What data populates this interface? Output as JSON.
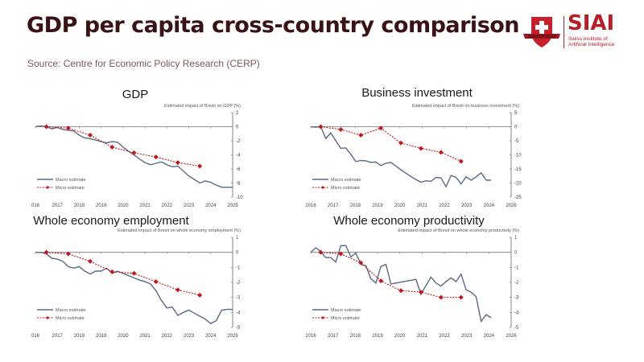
{
  "header": {
    "title": "GDP per capita cross-country comparison",
    "source": "Source: Centre for Economic Policy Research (CERP)"
  },
  "logo": {
    "name": "SIAI",
    "subtitle_line1": "Swiss Institute of",
    "subtitle_line2": "Artificial Intelligence",
    "brand_color": "#b3202a"
  },
  "colors": {
    "macro": "#5a6a85",
    "micro": "#c0181c",
    "title": "#3b1214"
  },
  "chart_data": [
    {
      "type": "line",
      "title": "GDP",
      "ylabel": "Estimated impact of Brexit on GDP (%)",
      "ylim": [
        -10,
        2
      ],
      "yticks": [
        "2",
        "0",
        "-2",
        "-4",
        "-6",
        "-8",
        "-10"
      ],
      "ytick_values": [
        2,
        0,
        -2,
        -4,
        -6,
        -8,
        -10
      ],
      "xlim": [
        2016,
        2025
      ],
      "xticks": [
        "016",
        "2017",
        "2018",
        "2019",
        "2020",
        "2021",
        "2022",
        "2023",
        "2024",
        "2025"
      ],
      "legend": [
        "Macro estimate",
        "Micro estimate"
      ],
      "legend_position": "bottom-left",
      "series": [
        {
          "name": "Macro estimate",
          "x": [
            2016,
            2016.25,
            2016.5,
            2016.75,
            2017,
            2017.25,
            2017.5,
            2017.75,
            2018,
            2018.25,
            2018.5,
            2018.75,
            2019,
            2019.25,
            2019.5,
            2019.75,
            2020,
            2020.25,
            2020.5,
            2020.75,
            2021,
            2021.25,
            2021.5,
            2021.75,
            2022,
            2022.25,
            2022.5,
            2022.75,
            2023,
            2023.25,
            2023.5,
            2023.75,
            2024,
            2024.25,
            2024.5,
            2024.75,
            2025
          ],
          "y": [
            0,
            0.1,
            0,
            -0.3,
            -0.1,
            -0.4,
            -0.5,
            -0.6,
            -1.2,
            -1.6,
            -1.7,
            -1.9,
            -2.1,
            -2.3,
            -2.1,
            -2.2,
            -2.9,
            -3.5,
            -4.0,
            -4.6,
            -5.1,
            -5.4,
            -5.2,
            -5.0,
            -5.4,
            -5.7,
            -5.6,
            -6.3,
            -7.0,
            -7.5,
            -8.0,
            -7.7,
            -7.9,
            -8.3,
            -8.6,
            -8.6,
            -8.6
          ]
        },
        {
          "name": "Micro estimate",
          "x": [
            2016.5,
            2017.5,
            2018.5,
            2019.5,
            2020.5,
            2021.5,
            2022.5,
            2023.5
          ],
          "y": [
            0,
            -0.2,
            -1.2,
            -2.9,
            -3.7,
            -4.3,
            -5.1,
            -5.6
          ]
        }
      ]
    },
    {
      "type": "line",
      "title": "Business investment",
      "ylabel": "Estimated impact of Brexit on business investment (%)",
      "ylim": [
        -25,
        5
      ],
      "yticks": [
        "5",
        "0",
        "-5",
        "-10",
        "-15",
        "-20",
        "-25"
      ],
      "ytick_values": [
        5,
        0,
        -5,
        -10,
        -15,
        -20,
        -25
      ],
      "xlim": [
        2016,
        2026
      ],
      "xticks": [
        "2016",
        "2017",
        "2018",
        "2019",
        "2020",
        "2021",
        "2022",
        "2023",
        "2024",
        "2026"
      ],
      "legend": [
        "Macro estimate",
        "Micro estimate"
      ],
      "legend_position": "bottom-left",
      "series": [
        {
          "name": "Macro estimate",
          "x": [
            2016,
            2016.25,
            2016.5,
            2016.75,
            2017,
            2017.25,
            2017.5,
            2017.75,
            2018,
            2018.25,
            2018.5,
            2018.75,
            2019,
            2019.25,
            2019.5,
            2019.75,
            2020,
            2020.25,
            2020.5,
            2020.75,
            2021,
            2021.25,
            2021.5,
            2021.75,
            2022,
            2022.25,
            2022.5,
            2022.75,
            2023,
            2023.25,
            2023.5,
            2023.75,
            2024,
            2024.25,
            2024.5,
            2024.75,
            2025
          ],
          "y": [
            0,
            -0.2,
            0,
            -4.2,
            -2.2,
            -5,
            -7.7,
            -7.5,
            -9.8,
            -12.4,
            -12.0,
            -12.1,
            -12.7,
            -12.5,
            -13.8,
            -13.0,
            -12.7,
            -14.0,
            -15.3,
            -16.5,
            -17.7,
            -18.8,
            -19.7,
            -19.2,
            -19.4,
            -18.0,
            -18.2,
            -21.3,
            -17.3,
            -18.0,
            -20.3,
            -17.8,
            -19.0,
            -17.8,
            -16.4,
            -19.0,
            -19.0
          ]
        },
        {
          "name": "Micro estimate",
          "x": [
            2016.5,
            2017.5,
            2018.5,
            2019.5,
            2020.5,
            2021.5,
            2022.5,
            2023.5
          ],
          "y": [
            0,
            -1.0,
            -3.0,
            -0.5,
            -5.8,
            -7.7,
            -9.1,
            -12.3
          ]
        }
      ]
    },
    {
      "type": "line",
      "title": "Whole economy employment",
      "ylabel": "Estimated impact of Brexit on whole economy employment (%)",
      "ylim": [
        -5,
        1
      ],
      "yticks": [
        "1",
        "0",
        "-1",
        "-2",
        "-3",
        "-4",
        "-5"
      ],
      "ytick_values": [
        1,
        0,
        -1,
        -2,
        -3,
        -4,
        -5
      ],
      "xlim": [
        2016,
        2025
      ],
      "xticks": [
        "016",
        "2017",
        "2018",
        "2019",
        "2020",
        "2021",
        "2022",
        "2023",
        "2024",
        "2025"
      ],
      "legend": [
        "Macro estimate",
        "Micro estimate"
      ],
      "legend_position": "bottom-left",
      "series": [
        {
          "name": "Macro estimate",
          "x": [
            2016,
            2016.25,
            2016.5,
            2016.75,
            2017,
            2017.25,
            2017.5,
            2017.75,
            2018,
            2018.25,
            2018.5,
            2018.75,
            2019,
            2019.25,
            2019.5,
            2019.75,
            2020,
            2020.25,
            2020.5,
            2020.75,
            2021,
            2021.25,
            2021.5,
            2021.75,
            2022,
            2022.25,
            2022.5,
            2022.75,
            2023,
            2023.25,
            2023.5,
            2023.75,
            2024,
            2024.25,
            2024.5,
            2024.75,
            2025
          ],
          "y": [
            0,
            0,
            -0.1,
            -0.4,
            -0.45,
            -0.6,
            -0.95,
            -1.05,
            -0.95,
            -1.25,
            -1.45,
            -1.25,
            -1.25,
            -1.05,
            -1.4,
            -1.25,
            -1.4,
            -1.55,
            -1.7,
            -1.85,
            -1.95,
            -2.1,
            -2.55,
            -3.2,
            -3.7,
            -3.65,
            -4.2,
            -4.0,
            -3.85,
            -4.05,
            -4.25,
            -4.45,
            -4.75,
            -4.55,
            -3.85,
            -3.8,
            -3.8
          ]
        },
        {
          "name": "Micro estimate",
          "x": [
            2016.5,
            2017.5,
            2018.5,
            2019.5,
            2020.5,
            2021.5,
            2022.5,
            2023.5
          ],
          "y": [
            0,
            -0.1,
            -0.6,
            -1.3,
            -1.4,
            -1.95,
            -2.5,
            -2.85
          ]
        }
      ]
    },
    {
      "type": "line",
      "title": "Whole economy productivity",
      "ylabel": "Estimated impact of Brexit on whole economy productivity (%)",
      "ylim": [
        -5,
        1
      ],
      "yticks": [
        "1",
        "0",
        "-1",
        "-2",
        "-3",
        "-4",
        "-5"
      ],
      "ytick_values": [
        1,
        0,
        -1,
        -2,
        -3,
        -4,
        -5
      ],
      "xlim": [
        2016,
        2026
      ],
      "xticks": [
        "2016",
        "2017",
        "2018",
        "2019",
        "2020",
        "2021",
        "2022",
        "2023",
        "2024",
        "2026"
      ],
      "legend": [
        "Macro estimate",
        "Micro estimate"
      ],
      "legend_position": "bottom-left",
      "series": [
        {
          "name": "Macro estimate",
          "x": [
            2016,
            2016.25,
            2016.5,
            2016.75,
            2017,
            2017.25,
            2017.5,
            2017.75,
            2018,
            2018.25,
            2018.5,
            2018.75,
            2019,
            2019.25,
            2019.5,
            2019.75,
            2020,
            2021.25,
            2021.5,
            2021.75,
            2022,
            2022.25,
            2022.5,
            2022.75,
            2023,
            2023.25,
            2023.5,
            2023.75,
            2024,
            2024.25,
            2024.5,
            2024.75,
            2025
          ],
          "y": [
            0,
            0.3,
            0.05,
            -0.35,
            -0.35,
            -0.65,
            0.45,
            0.45,
            -0.3,
            -0.05,
            -0.8,
            -0.9,
            -1.75,
            -2.05,
            -0.95,
            -0.8,
            -2.1,
            -1.8,
            -2.8,
            -2.2,
            -1.65,
            -2.05,
            -2.25,
            -1.95,
            -1.7,
            -1.95,
            -1.45,
            -2.5,
            -2.65,
            -2.95,
            -4.6,
            -4.15,
            -4.35
          ]
        },
        {
          "name": "Micro estimate",
          "x": [
            2016.5,
            2017.5,
            2018.5,
            2019.5,
            2020.5,
            2021.5,
            2022.5,
            2023.5
          ],
          "y": [
            0,
            -0.1,
            -0.7,
            -1.9,
            -2.55,
            -2.65,
            -3.0,
            -3.0
          ]
        }
      ]
    }
  ]
}
